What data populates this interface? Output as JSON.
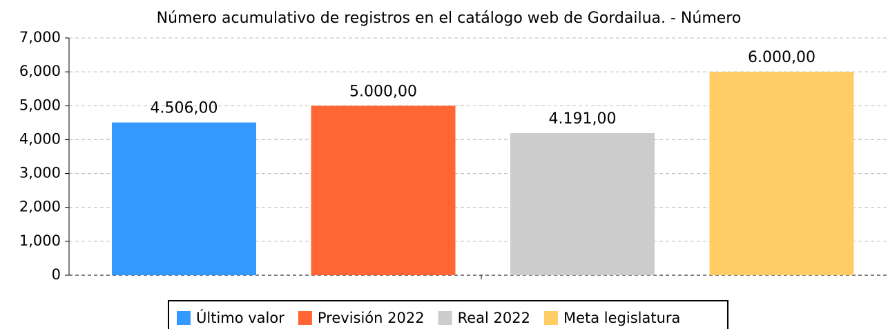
{
  "chart_data": {
    "type": "bar",
    "title": "Número acumulativo de registros en el catálogo web de Gordailua. - Número",
    "categories": [
      null
    ],
    "series": [
      {
        "name": "Último valor",
        "color": "#3399ff",
        "values": [
          4506
        ],
        "value_labels": [
          "4.506,00"
        ]
      },
      {
        "name": "Previsión 2022",
        "color": "#ff6633",
        "values": [
          5000
        ],
        "value_labels": [
          "5.000,00"
        ]
      },
      {
        "name": "Real 2022",
        "color": "#cccccc",
        "values": [
          4191
        ],
        "value_labels": [
          "4.191,00"
        ]
      },
      {
        "name": "Meta legislatura",
        "color": "#ffcc66",
        "values": [
          6000
        ],
        "value_labels": [
          "6.000,00"
        ]
      }
    ],
    "ylim": [
      0,
      7000
    ],
    "yticks": [
      0,
      {
        "value": 1000,
        "label": "1,000"
      },
      {
        "value": 2000,
        "label": "2,000"
      },
      {
        "value": 3000,
        "label": "3,000"
      },
      {
        "value": 4000,
        "label": "4,000"
      },
      {
        "value": 5000,
        "label": "5,000"
      },
      {
        "value": 6000,
        "label": "6,000"
      },
      {
        "value": 7000,
        "label": "7,000"
      }
    ],
    "grid": true,
    "legend": "bottom"
  }
}
